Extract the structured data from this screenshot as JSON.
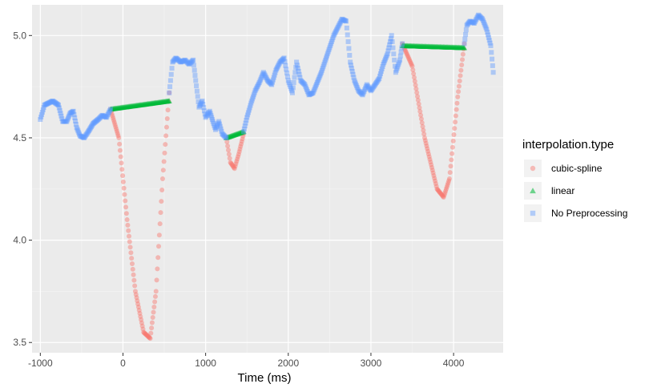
{
  "chart_data": {
    "type": "scatter",
    "title": "",
    "xlabel": "Time (ms)",
    "ylabel": "",
    "xlim": [
      -1100,
      4600
    ],
    "ylim": [
      3.45,
      5.15
    ],
    "x_ticks": [
      -1000,
      0,
      1000,
      2000,
      3000,
      4000
    ],
    "x_tick_labels": [
      "-1000",
      "0",
      "1000",
      "2000",
      "3000",
      "4000"
    ],
    "y_ticks": [
      3.5,
      4.0,
      4.5,
      5.0
    ],
    "y_tick_labels": [
      "3.5",
      "4.0",
      "4.5",
      "5.0"
    ],
    "grid": true,
    "legend": {
      "title": "interpolation.type",
      "position": "right",
      "entries": [
        {
          "label": "cubic-spline",
          "color": "#F8766D",
          "shape": "circle"
        },
        {
          "label": "linear",
          "color": "#00BA38",
          "shape": "triangle"
        },
        {
          "label": "No Preprocessing",
          "color": "#619CFF",
          "shape": "square"
        }
      ]
    },
    "series": [
      {
        "name": "cubic-spline",
        "color": "#F8766D",
        "segments": [
          {
            "x": [
              -150,
              -50,
              50,
              150,
              250,
              330,
              400,
              480,
              560
            ],
            "y": [
              4.64,
              4.5,
              4.1,
              3.75,
              3.55,
              3.52,
              3.75,
              4.3,
              4.72
            ]
          },
          {
            "x": [
              1250,
              1300,
              1350,
              1400,
              1460
            ],
            "y": [
              4.5,
              4.38,
              4.35,
              4.42,
              4.52
            ]
          },
          {
            "x": [
              3380,
              3500,
              3650,
              3800,
              3880,
              3950,
              4050,
              4130
            ],
            "y": [
              4.96,
              4.85,
              4.5,
              4.25,
              4.21,
              4.3,
              4.7,
              4.96
            ]
          }
        ]
      },
      {
        "name": "linear",
        "color": "#00BA38",
        "segments": [
          {
            "x": [
              -150,
              560
            ],
            "y": [
              4.64,
              4.68
            ]
          },
          {
            "x": [
              1250,
              1460
            ],
            "y": [
              4.5,
              4.53
            ]
          },
          {
            "x": [
              3380,
              4130
            ],
            "y": [
              4.95,
              4.94
            ]
          }
        ]
      },
      {
        "name": "No Preprocessing",
        "color": "#619CFF",
        "segments": [
          {
            "x": [
              -1000,
              -950,
              -900,
              -850,
              -780,
              -730,
              -680,
              -640,
              -600,
              -560,
              -520,
              -470,
              -420,
              -360,
              -300,
              -250,
              -200,
              -150
            ],
            "y": [
              4.59,
              4.66,
              4.67,
              4.68,
              4.66,
              4.58,
              4.58,
              4.62,
              4.63,
              4.55,
              4.51,
              4.5,
              4.53,
              4.57,
              4.59,
              4.61,
              4.6,
              4.64
            ]
          },
          {
            "x": [
              560,
              600,
              640,
              700,
              750,
              800,
              850,
              880,
              920,
              960,
              1000,
              1050,
              1080,
              1120,
              1160,
              1200,
              1250
            ],
            "y": [
              4.72,
              4.87,
              4.89,
              4.87,
              4.88,
              4.86,
              4.88,
              4.78,
              4.65,
              4.68,
              4.6,
              4.63,
              4.59,
              4.54,
              4.58,
              4.52,
              4.5
            ]
          },
          {
            "x": [
              1460,
              1500,
              1550,
              1600,
              1650,
              1700,
              1750,
              1800,
              1850,
              1900,
              1950,
              2000,
              2050,
              2100,
              2150,
              2200,
              2250,
              2300,
              2350,
              2400,
              2450,
              2500,
              2550,
              2600,
              2650,
              2700,
              2750,
              2800,
              2850,
              2900,
              2950,
              3000,
              3050,
              3100,
              3150,
              3200,
              3250,
              3300,
              3350,
              3380
            ],
            "y": [
              4.53,
              4.6,
              4.67,
              4.73,
              4.77,
              4.82,
              4.78,
              4.76,
              4.83,
              4.87,
              4.89,
              4.78,
              4.72,
              4.87,
              4.78,
              4.76,
              4.71,
              4.72,
              4.77,
              4.82,
              4.88,
              4.94,
              5.0,
              5.04,
              5.08,
              5.07,
              4.87,
              4.78,
              4.73,
              4.71,
              4.76,
              4.73,
              4.76,
              4.79,
              4.86,
              4.91,
              5.0,
              4.82,
              4.88,
              4.96
            ]
          },
          {
            "x": [
              4130,
              4160,
              4200,
              4250,
              4300,
              4350,
              4400,
              4450,
              4480
            ],
            "y": [
              4.96,
              5.05,
              5.07,
              5.06,
              5.1,
              5.08,
              5.03,
              4.95,
              4.82
            ]
          }
        ]
      }
    ]
  }
}
